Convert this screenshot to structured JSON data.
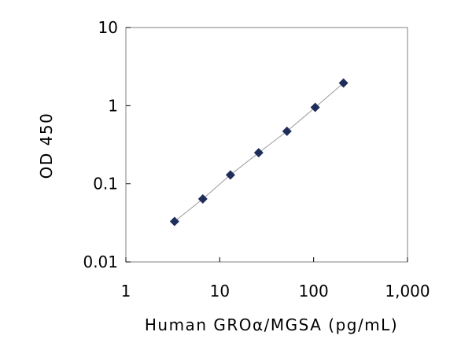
{
  "chart_data": {
    "type": "scatter",
    "title": "",
    "xlabel": "Human GROα/MGSA (pg/mL)",
    "ylabel": "OD 450",
    "x_scale": "log",
    "y_scale": "log",
    "xlim": [
      1,
      1000
    ],
    "ylim": [
      0.01,
      10
    ],
    "x_ticks": [
      {
        "value": 1,
        "label": "1"
      },
      {
        "value": 10,
        "label": "10"
      },
      {
        "value": 100,
        "label": "100"
      },
      {
        "value": 1000,
        "label": "1,000"
      }
    ],
    "y_ticks": [
      {
        "value": 10,
        "label": "10"
      },
      {
        "value": 1,
        "label": "1"
      },
      {
        "value": 0.1,
        "label": "0.1"
      },
      {
        "value": 0.01,
        "label": "0.01"
      }
    ],
    "grid": false,
    "marker": "diamond",
    "marker_color": "#1F2D5A",
    "line_color": "#9A9A9A",
    "series": [
      {
        "x": [
          3.3,
          6.6,
          13,
          26,
          52,
          104,
          208
        ],
        "y": [
          0.033,
          0.064,
          0.13,
          0.25,
          0.47,
          0.95,
          1.95
        ]
      }
    ]
  }
}
